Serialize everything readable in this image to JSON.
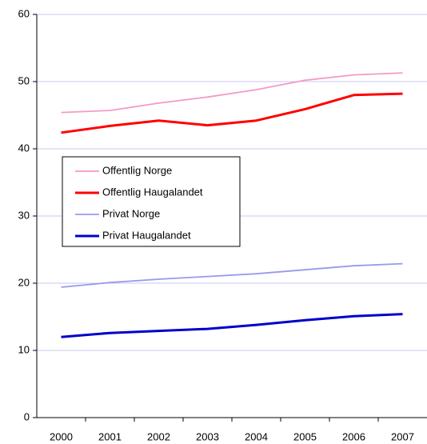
{
  "chart_data": {
    "type": "line",
    "categories": [
      "2000",
      "2001",
      "2002",
      "2003",
      "2004",
      "2005",
      "2006",
      "2007"
    ],
    "series": [
      {
        "name": "Offentlig Norge",
        "color": "#f49ac6",
        "values": [
          45.4,
          45.7,
          46.8,
          47.7,
          48.8,
          50.2,
          51.0,
          51.3
        ]
      },
      {
        "name": "Offentlig Haugalandet",
        "color": "#ff0000",
        "values": [
          42.4,
          43.4,
          44.2,
          43.5,
          44.2,
          45.9,
          48.0,
          48.2
        ]
      },
      {
        "name": "Privat Norge",
        "color": "#9999ee",
        "values": [
          19.4,
          20.1,
          20.6,
          21.0,
          21.4,
          22.0,
          22.6,
          22.9
        ]
      },
      {
        "name": "Privat Haugalandet",
        "color": "#0000cc",
        "values": [
          12.0,
          12.6,
          12.9,
          13.2,
          13.8,
          14.5,
          15.1,
          15.4
        ]
      }
    ],
    "ylim": [
      0,
      60
    ],
    "yticks": [
      0,
      10,
      20,
      30,
      40,
      50,
      60
    ],
    "grid": true
  }
}
